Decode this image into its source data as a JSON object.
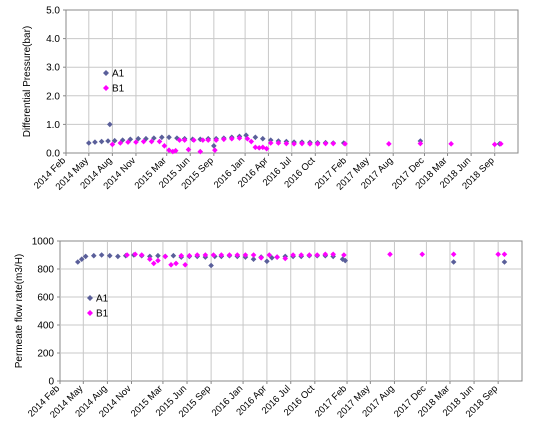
{
  "colors": {
    "A1": "#5a5f9a",
    "B1": "#ff00ff",
    "grid": "#c8c8c8",
    "axis": "#888888"
  },
  "chart_data": [
    {
      "type": "scatter",
      "ylabel": "Differential Pressure(bar)",
      "ylim": [
        0,
        5
      ],
      "yticks": [
        "0.0",
        "1.0",
        "2.0",
        "3.0",
        "4.0",
        "5.0"
      ],
      "xlim": [
        "2014-02-01",
        "2018-12-01"
      ],
      "xticks": [
        "2014 Feb",
        "2014 May",
        "2014 Aug",
        "2014 Nov",
        "2015 Mar",
        "2015 Jun",
        "2015 Sep",
        "2016 Jan",
        "2016 Apr",
        "2016 Jul",
        "2016 Oct",
        "2017 Feb",
        "2017 May",
        "2017 Aug",
        "2017 Dec",
        "2018 Mar",
        "2018 Jun",
        "2018 Sep"
      ],
      "grid": true,
      "legend_position": "upper-left inside plot",
      "series": [
        {
          "name": "A1",
          "marker": "diamond",
          "points": [
            [
              "2014-05-01",
              0.35
            ],
            [
              "2014-05-25",
              0.38
            ],
            [
              "2014-06-20",
              0.4
            ],
            [
              "2014-07-15",
              0.42
            ],
            [
              "2014-07-22",
              1.0
            ],
            [
              "2014-08-10",
              0.43
            ],
            [
              "2014-09-10",
              0.45
            ],
            [
              "2014-10-10",
              0.48
            ],
            [
              "2014-11-10",
              0.5
            ],
            [
              "2014-12-10",
              0.5
            ],
            [
              "2015-01-10",
              0.52
            ],
            [
              "2015-02-10",
              0.55
            ],
            [
              "2015-03-10",
              0.55
            ],
            [
              "2015-04-10",
              0.52
            ],
            [
              "2015-05-10",
              0.5
            ],
            [
              "2015-06-10",
              0.48
            ],
            [
              "2015-07-10",
              0.48
            ],
            [
              "2015-08-10",
              0.5
            ],
            [
              "2015-09-01",
              0.25
            ],
            [
              "2015-09-10",
              0.5
            ],
            [
              "2015-10-10",
              0.52
            ],
            [
              "2015-11-10",
              0.55
            ],
            [
              "2015-12-10",
              0.58
            ],
            [
              "2016-01-05",
              0.62
            ],
            [
              "2016-02-10",
              0.55
            ],
            [
              "2016-03-10",
              0.5
            ],
            [
              "2016-04-10",
              0.45
            ],
            [
              "2016-05-10",
              0.42
            ],
            [
              "2016-06-10",
              0.4
            ],
            [
              "2016-07-10",
              0.38
            ],
            [
              "2016-08-10",
              0.38
            ],
            [
              "2016-09-10",
              0.37
            ],
            [
              "2016-10-10",
              0.36
            ],
            [
              "2016-11-10",
              0.36
            ],
            [
              "2016-12-10",
              0.35
            ],
            [
              "2017-01-20",
              0.35
            ],
            [
              "2017-11-15",
              0.42
            ],
            [
              "2018-09-20",
              0.32
            ]
          ]
        },
        {
          "name": "B1",
          "marker": "diamond",
          "points": [
            [
              "2014-08-01",
              0.3
            ],
            [
              "2014-09-01",
              0.35
            ],
            [
              "2014-10-01",
              0.38
            ],
            [
              "2014-11-01",
              0.38
            ],
            [
              "2014-12-01",
              0.4
            ],
            [
              "2015-01-01",
              0.4
            ],
            [
              "2015-02-01",
              0.4
            ],
            [
              "2015-02-20",
              0.25
            ],
            [
              "2015-03-10",
              0.1
            ],
            [
              "2015-03-25",
              0.05
            ],
            [
              "2015-04-05",
              0.08
            ],
            [
              "2015-04-20",
              0.45
            ],
            [
              "2015-05-10",
              0.45
            ],
            [
              "2015-05-25",
              0.12
            ],
            [
              "2015-06-15",
              0.45
            ],
            [
              "2015-07-10",
              0.05
            ],
            [
              "2015-07-20",
              0.45
            ],
            [
              "2015-08-10",
              0.45
            ],
            [
              "2015-09-05",
              0.1
            ],
            [
              "2015-09-10",
              0.45
            ],
            [
              "2015-10-10",
              0.48
            ],
            [
              "2015-11-10",
              0.5
            ],
            [
              "2015-12-10",
              0.52
            ],
            [
              "2016-01-10",
              0.5
            ],
            [
              "2016-01-25",
              0.4
            ],
            [
              "2016-02-10",
              0.2
            ],
            [
              "2016-02-25",
              0.18
            ],
            [
              "2016-03-10",
              0.2
            ],
            [
              "2016-03-25",
              0.15
            ],
            [
              "2016-04-10",
              0.35
            ],
            [
              "2016-05-10",
              0.35
            ],
            [
              "2016-06-10",
              0.33
            ],
            [
              "2016-07-10",
              0.32
            ],
            [
              "2016-08-10",
              0.33
            ],
            [
              "2016-09-10",
              0.32
            ],
            [
              "2016-10-10",
              0.32
            ],
            [
              "2016-11-10",
              0.33
            ],
            [
              "2016-12-10",
              0.33
            ],
            [
              "2017-01-25",
              0.32
            ],
            [
              "2017-07-15",
              0.32
            ],
            [
              "2017-11-15",
              0.33
            ],
            [
              "2018-03-15",
              0.32
            ],
            [
              "2018-09-01",
              0.3
            ],
            [
              "2018-09-25",
              0.32
            ]
          ]
        }
      ]
    },
    {
      "type": "scatter",
      "ylabel": "Permeate flow rate(m3/H)",
      "ylim": [
        0,
        1000
      ],
      "yticks": [
        "0",
        "200",
        "400",
        "600",
        "800",
        "1000"
      ],
      "xlim": [
        "2014-02-01",
        "2018-12-01"
      ],
      "xticks": [
        "2014 Feb",
        "2014 May",
        "2014 Aug",
        "2014 Nov",
        "2015 Mar",
        "2015 Jun",
        "2015 Sep",
        "2016 Jan",
        "2016 Apr",
        "2016 Jul",
        "2016 Oct",
        "2017 Feb",
        "2017 May",
        "2017 Aug",
        "2017 Dec",
        "2018 Mar",
        "2018 Jun",
        "2018 Sep"
      ],
      "grid": true,
      "legend_position": "left inside plot",
      "series": [
        {
          "name": "A1",
          "marker": "diamond",
          "points": [
            [
              "2014-04-10",
              850
            ],
            [
              "2014-04-25",
              870
            ],
            [
              "2014-05-10",
              890
            ],
            [
              "2014-06-10",
              895
            ],
            [
              "2014-07-10",
              900
            ],
            [
              "2014-08-10",
              895
            ],
            [
              "2014-09-10",
              890
            ],
            [
              "2014-10-10",
              895
            ],
            [
              "2014-11-10",
              900
            ],
            [
              "2014-12-10",
              895
            ],
            [
              "2015-01-10",
              890
            ],
            [
              "2015-02-10",
              895
            ],
            [
              "2015-03-10",
              890
            ],
            [
              "2015-04-10",
              895
            ],
            [
              "2015-05-10",
              885
            ],
            [
              "2015-06-10",
              890
            ],
            [
              "2015-07-10",
              890
            ],
            [
              "2015-08-10",
              885
            ],
            [
              "2015-09-01",
              825
            ],
            [
              "2015-09-15",
              890
            ],
            [
              "2015-10-10",
              890
            ],
            [
              "2015-11-10",
              895
            ],
            [
              "2015-12-10",
              890
            ],
            [
              "2016-01-10",
              885
            ],
            [
              "2016-02-10",
              870
            ],
            [
              "2016-03-10",
              885
            ],
            [
              "2016-04-01",
              855
            ],
            [
              "2016-04-20",
              880
            ],
            [
              "2016-05-10",
              885
            ],
            [
              "2016-06-10",
              890
            ],
            [
              "2016-07-10",
              890
            ],
            [
              "2016-08-10",
              890
            ],
            [
              "2016-09-10",
              895
            ],
            [
              "2016-10-10",
              895
            ],
            [
              "2016-11-10",
              895
            ],
            [
              "2016-12-10",
              890
            ],
            [
              "2017-01-15",
              870
            ],
            [
              "2017-01-25",
              860
            ],
            [
              "2018-03-15",
              850
            ],
            [
              "2018-09-25",
              850
            ]
          ]
        },
        {
          "name": "B1",
          "marker": "diamond",
          "points": [
            [
              "2014-10-15",
              900
            ],
            [
              "2014-11-15",
              905
            ],
            [
              "2014-12-10",
              900
            ],
            [
              "2015-01-10",
              870
            ],
            [
              "2015-01-25",
              840
            ],
            [
              "2015-02-10",
              860
            ],
            [
              "2015-03-10",
              890
            ],
            [
              "2015-04-01",
              830
            ],
            [
              "2015-04-20",
              840
            ],
            [
              "2015-05-10",
              895
            ],
            [
              "2015-05-25",
              830
            ],
            [
              "2015-06-10",
              895
            ],
            [
              "2015-07-10",
              900
            ],
            [
              "2015-08-10",
              900
            ],
            [
              "2015-09-10",
              900
            ],
            [
              "2015-10-10",
              900
            ],
            [
              "2015-11-10",
              900
            ],
            [
              "2015-12-10",
              900
            ],
            [
              "2016-01-10",
              900
            ],
            [
              "2016-02-10",
              900
            ],
            [
              "2016-03-10",
              880
            ],
            [
              "2016-04-10",
              900
            ],
            [
              "2016-05-10",
              885
            ],
            [
              "2016-06-10",
              875
            ],
            [
              "2016-07-10",
              900
            ],
            [
              "2016-08-10",
              900
            ],
            [
              "2016-09-10",
              900
            ],
            [
              "2016-10-10",
              900
            ],
            [
              "2016-11-10",
              905
            ],
            [
              "2016-12-10",
              905
            ],
            [
              "2017-01-20",
              900
            ],
            [
              "2017-07-15",
              905
            ],
            [
              "2017-11-15",
              905
            ],
            [
              "2018-03-15",
              905
            ],
            [
              "2018-09-01",
              905
            ],
            [
              "2018-09-25",
              905
            ]
          ]
        }
      ]
    }
  ]
}
